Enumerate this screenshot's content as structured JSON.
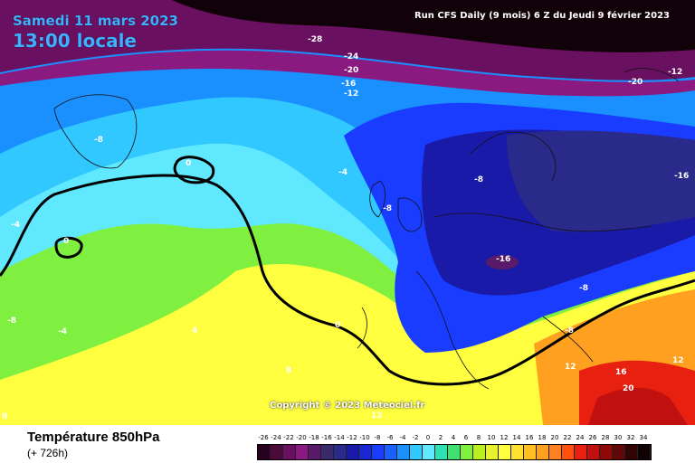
{
  "header": {
    "date": "Samedi 11 mars 2023",
    "time": "13:00 locale",
    "run_info": "Run CFS Daily (9 mois) 6 Z du Jeudi 9 février 2023"
  },
  "copyright": "Copyright © 2023 Meteociel.fr",
  "footer": {
    "variable": "Température 850hPa",
    "lead_time": "(+ 726h)"
  },
  "legend": {
    "labels": [
      "-26",
      "-24",
      "-22",
      "-20",
      "-18",
      "-16",
      "-14",
      "-12",
      "-10",
      "-8",
      "-6",
      "-4",
      "-2",
      "0",
      "2",
      "4",
      "6",
      "8",
      "10",
      "12",
      "14",
      "16",
      "18",
      "20",
      "22",
      "24",
      "26",
      "28",
      "30",
      "32",
      "34"
    ],
    "colors": [
      "#2a0020",
      "#4a0a3a",
      "#6a1060",
      "#8a1a80",
      "#5a1a6a",
      "#3a2a6a",
      "#2a2a8a",
      "#1a1aa8",
      "#1a28d0",
      "#1a3cff",
      "#1a60ff",
      "#1a90ff",
      "#30c8ff",
      "#60e8ff",
      "#30e0b0",
      "#40e070",
      "#80f040",
      "#b8f020",
      "#e8f030",
      "#ffff40",
      "#ffe030",
      "#ffc020",
      "#ffa020",
      "#ff8020",
      "#ff5010",
      "#e82010",
      "#c01010",
      "#900808",
      "#600808",
      "#300404",
      "#100202"
    ]
  },
  "isotherm_labels": [
    {
      "text": "-28"
    },
    {
      "text": "-24"
    },
    {
      "text": "-20"
    },
    {
      "text": "-16"
    },
    {
      "text": "-12"
    },
    {
      "text": "-12"
    },
    {
      "text": "-20"
    },
    {
      "text": "-16"
    },
    {
      "text": "-8"
    },
    {
      "text": "0"
    },
    {
      "text": "-4"
    },
    {
      "text": "-8"
    },
    {
      "text": "-8"
    },
    {
      "text": "-4"
    },
    {
      "text": "0"
    },
    {
      "text": "-16"
    },
    {
      "text": "-8"
    },
    {
      "text": "-8"
    },
    {
      "text": "-4"
    },
    {
      "text": "4"
    },
    {
      "text": "0"
    },
    {
      "text": "8"
    },
    {
      "text": "-8"
    },
    {
      "text": "12"
    },
    {
      "text": "16"
    },
    {
      "text": "20"
    },
    {
      "text": "12"
    },
    {
      "text": "12"
    },
    {
      "text": "8"
    }
  ]
}
